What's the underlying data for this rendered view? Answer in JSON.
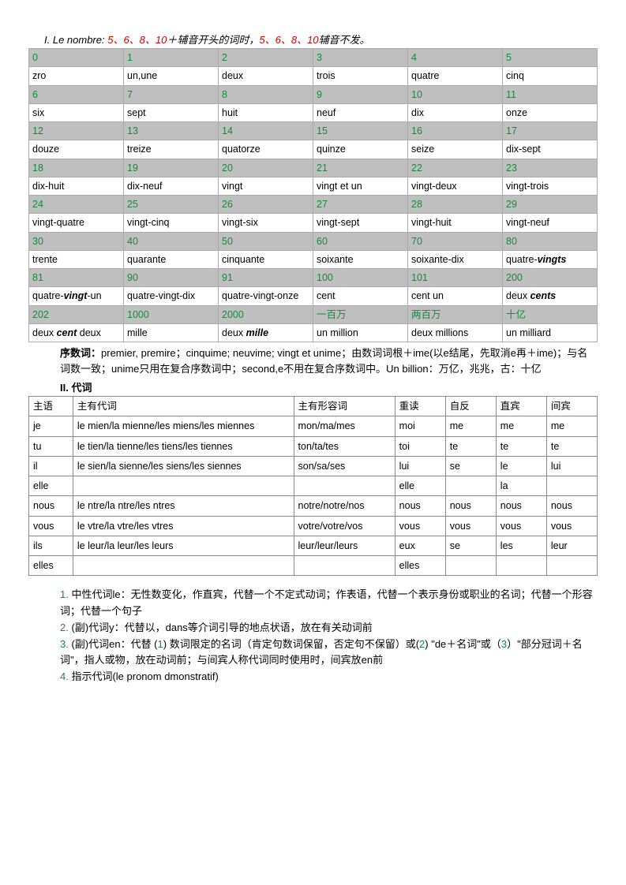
{
  "header": {
    "prefix": "I. Le nombre: ",
    "nums1": "5、6、8、10",
    "mid": "＋辅音开头的词时，",
    "nums2": "5、6、8、10",
    "suffix": "辅音不发。"
  },
  "numTable": [
    {
      "h": [
        "0",
        "1",
        "2",
        "3",
        "4",
        "5"
      ],
      "v": [
        "zro",
        "un,une",
        "deux",
        "trois",
        "quatre",
        "cinq"
      ]
    },
    {
      "h": [
        "6",
        "7",
        "8",
        "9",
        "10",
        "11"
      ],
      "v": [
        "six",
        "sept",
        "huit",
        "neuf",
        "dix",
        "onze"
      ]
    },
    {
      "h": [
        "12",
        "13",
        "14",
        "15",
        "16",
        "17"
      ],
      "v": [
        "douze",
        "treize",
        "quatorze",
        "quinze",
        "seize",
        "dix-sept"
      ]
    },
    {
      "h": [
        "18",
        "19",
        "20",
        "21",
        "22",
        "23"
      ],
      "v": [
        "dix-huit",
        "dix-neuf",
        "vingt",
        "vingt et un",
        "vingt-deux",
        "vingt-trois"
      ]
    },
    {
      "h": [
        "24",
        "25",
        "26",
        "27",
        "28",
        "29"
      ],
      "v": [
        "vingt-quatre",
        "vingt-cinq",
        "vingt-six",
        "vingt-sept",
        "vingt-huit",
        "vingt-neuf"
      ]
    },
    {
      "h": [
        "30",
        "40",
        "50",
        "60",
        "70",
        "80"
      ],
      "v": [
        "trente",
        "quarante",
        "cinquante",
        "soixante",
        "soixante-dix",
        "quatre-<b class='bold-part'>vingts</b>"
      ]
    },
    {
      "h": [
        "81",
        "90",
        "91",
        "100",
        "101",
        "200"
      ],
      "v": [
        "quatre-<b class='bold-part'>vingt</b>-un",
        "quatre-vingt-dix",
        "quatre-vingt-onze",
        "cent",
        "cent un",
        "deux <b class='bold-part'>cents</b>"
      ]
    },
    {
      "h": [
        "202",
        "1000",
        "2000",
        "一百万",
        "两百万",
        "十亿"
      ],
      "v": [
        "deux <b class='bold-part'>cent</b> deux",
        "mille",
        "deux <b class='bold-part'>mille</b>",
        "un million",
        "deux millions",
        "un milliard"
      ]
    }
  ],
  "ordinal": "序数词：premier, premire；cinquime; neuvime; vingt et unime；由数词词根＋ime(以e结尾，先取消e再＋ime)；与名词数一致；unime只用在复合序数词中；second,e不用在复合序数词中。Un billion：万亿，兆兆，古：十亿",
  "section2": "II. 代词",
  "proHeaders": [
    "主语",
    "主有代词",
    "主有形容词",
    "重读",
    "自反",
    "直宾",
    "间宾"
  ],
  "proRows": [
    [
      "je",
      "le mien/la mienne/les miens/les miennes",
      "mon/ma/mes",
      "moi",
      "me",
      "me",
      "me"
    ],
    [
      "tu",
      "le tien/la tienne/les tiens/les tiennes",
      "ton/ta/tes",
      "toi",
      "te",
      "te",
      "te"
    ],
    [
      "il",
      "le sien/la sienne/les siens/les siennes",
      "son/sa/ses",
      "lui",
      "se",
      "le",
      "lui"
    ],
    [
      "elle",
      "",
      "",
      "elle",
      "",
      "la",
      ""
    ],
    [
      "nous",
      "le ntre/la ntre/les ntres",
      "notre/notre/nos",
      "nous",
      "nous",
      "nous",
      "nous"
    ],
    [
      "vous",
      "le vtre/la vtre/les vtres",
      "votre/votre/vos",
      "vous",
      "vous",
      "vous",
      "vous"
    ],
    [
      "ils",
      "le leur/la leur/les leurs",
      "leur/leur/leurs",
      "eux",
      "se",
      "les",
      "leur"
    ],
    [
      "elles",
      "",
      "",
      "elles",
      "",
      "",
      ""
    ]
  ],
  "notes": [
    {
      "n": "1.",
      "t": "中性代词le：无性数变化，作直宾，代替一个不定式动词；作表语，代替一个表示身份或职业的名词；代替一个形容词；代替一个句子"
    },
    {
      "n": "2.",
      "t": "(副)代词y：代替以，dans等介词引导的地点状语，放在有关动词前"
    },
    {
      "n": "3.",
      "t": "(副)代词en：代替 (<span class='green-num'>1</span>) 数词限定的名词（肯定句数词保留，否定句不保留）或(<span class='green-num'>2</span>) \"de＋名词\"或（<span class='green-num'>3</span>）\"部分冠词＋名词\"，指人或物，放在动词前；与间宾人称代词同时使用时，间宾放en前"
    },
    {
      "n": "4.",
      "t": "指示代词(le pronom dmonstratif)"
    }
  ]
}
